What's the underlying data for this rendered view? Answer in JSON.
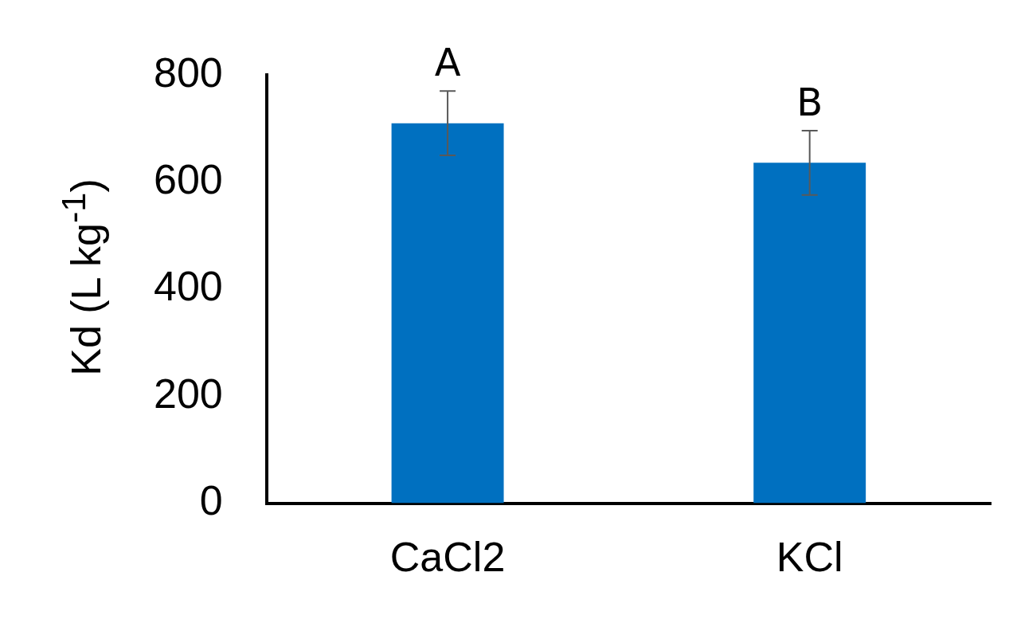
{
  "chart_data": {
    "type": "bar",
    "ylabel": "Kd (L kg$^{-1}$)",
    "categories": [
      "CaCl2",
      "KCl"
    ],
    "values": [
      710,
      636
    ],
    "errors": [
      60,
      60
    ],
    "color": "#0070c0",
    "ylim": [
      0,
      800
    ],
    "yticks": [
      0,
      200,
      400,
      600,
      800
    ],
    "grid": false,
    "legend": false,
    "annotations": [
      {
        "text": "A",
        "x": "CaCl2",
        "y": 770
      },
      {
        "text": "B",
        "x": "KCl",
        "y": 696
      }
    ]
  }
}
